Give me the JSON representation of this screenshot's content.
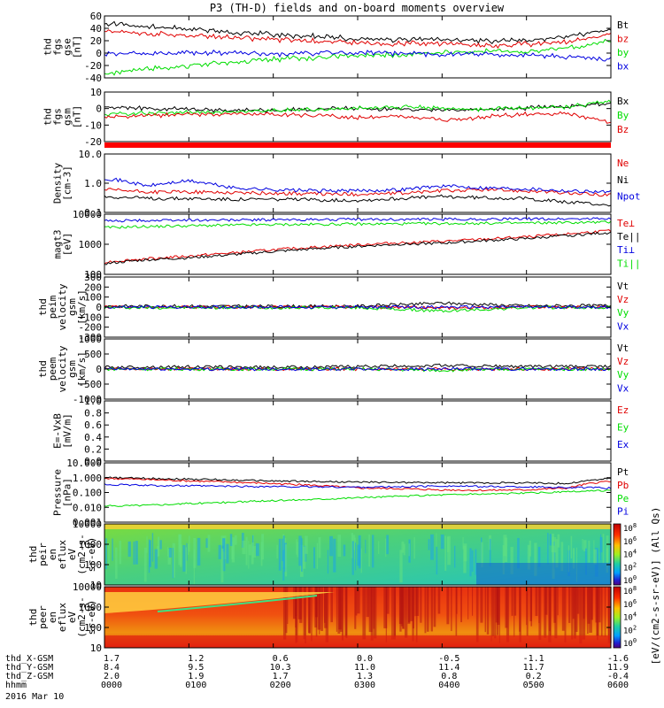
{
  "title": "P3 (TH-D) fields and on-board moments overview",
  "date": "2016 Mar 10",
  "time_axis": {
    "tick_labels": [
      "0000",
      "0100",
      "0200",
      "0300",
      "0400",
      "0500",
      "0600"
    ],
    "rows": [
      {
        "label": "thd_X-GSM",
        "values": [
          "1.7",
          "1.2",
          "0.6",
          "0.0",
          "-0.5",
          "-1.1",
          "-1.6"
        ]
      },
      {
        "label": "thd_Y-GSM",
        "values": [
          "8.4",
          "9.5",
          "10.3",
          "11.0",
          "11.4",
          "11.7",
          "11.9"
        ]
      },
      {
        "label": "thd_Z-GSM",
        "values": [
          "2.0",
          "1.9",
          "1.7",
          "1.3",
          "0.8",
          "0.2",
          "-0.4"
        ]
      },
      {
        "label": "hhmm",
        "values": [
          "0000",
          "0100",
          "0200",
          "0300",
          "0400",
          "0500",
          "0600"
        ]
      }
    ]
  },
  "colors": {
    "black": "#000000",
    "red": "#e00000",
    "green": "#00dd00",
    "blue": "#0000e0"
  },
  "colorbar_unit": "[eV/(cm2-s-sr-eV)] (All Qs)",
  "colorbar_ticks": [
    "10^8",
    "10^6",
    "10^4",
    "10^2",
    "10^0"
  ],
  "chart_data": [
    {
      "type": "line",
      "panel": "fgs_gse",
      "ylabel": [
        "thd",
        "fgs",
        "gse",
        "[nT]"
      ],
      "ylim": [
        -40,
        60
      ],
      "yticks": [
        "60",
        "40",
        "20",
        "0",
        "-20",
        "-40"
      ],
      "legend": [
        {
          "label": "Bt",
          "color": "#000000"
        },
        {
          "label": "bz",
          "color": "#e00000"
        },
        {
          "label": "by",
          "color": "#00dd00"
        },
        {
          "label": "bx",
          "color": "#0000e0"
        }
      ],
      "x_hours": [
        0,
        0.5,
        1,
        1.5,
        2,
        2.5,
        3,
        3.5,
        4,
        4.5,
        5,
        5.5,
        6
      ],
      "series": [
        {
          "name": "Bt",
          "values": [
            47,
            43,
            39,
            34,
            30,
            27,
            23,
            21,
            22,
            20,
            21,
            26,
            40
          ]
        },
        {
          "name": "bz",
          "values": [
            35,
            32,
            29,
            25,
            22,
            19,
            17,
            15,
            16,
            12,
            14,
            18,
            30
          ]
        },
        {
          "name": "by",
          "values": [
            -33,
            -26,
            -20,
            -15,
            -10,
            -7,
            -4,
            -2,
            0,
            3,
            2,
            8,
            20
          ]
        },
        {
          "name": "bx",
          "values": [
            -2,
            -1,
            0,
            0,
            -1,
            0,
            1,
            0,
            -2,
            -3,
            -4,
            -6,
            -10
          ]
        }
      ]
    },
    {
      "type": "line",
      "panel": "fgs_gsm",
      "ylabel": [
        "thd",
        "fgs",
        "gsm",
        "[nT]"
      ],
      "ylim": [
        -25,
        15
      ],
      "yticks": [
        "10",
        "0",
        "-10",
        "-20"
      ],
      "legend": [
        {
          "label": "Bx",
          "color": "#000000"
        },
        {
          "label": "By",
          "color": "#00dd00"
        },
        {
          "label": "Bz",
          "color": "#e00000"
        }
      ],
      "x_hours": [
        0,
        0.5,
        1,
        1.5,
        2,
        2.5,
        3,
        3.5,
        4,
        4.5,
        5,
        5.5,
        6
      ],
      "series": [
        {
          "name": "Bx",
          "values": [
            3,
            2,
            1,
            0,
            0,
            1,
            2,
            1,
            0,
            1,
            2,
            3,
            6
          ]
        },
        {
          "name": "By",
          "values": [
            -3,
            -2,
            -1,
            -1,
            0,
            1,
            2,
            3,
            2,
            1,
            2,
            3,
            8
          ]
        },
        {
          "name": "Bz",
          "values": [
            -5,
            -4,
            -3,
            -3,
            -3,
            -4,
            -6,
            -4,
            -8,
            -5,
            -3,
            -2,
            -10
          ]
        }
      ]
    },
    {
      "type": "line",
      "panel": "density",
      "scale": "log",
      "ylabel": [
        "Density",
        "[cm-3]"
      ],
      "ylim": [
        0.1,
        10
      ],
      "yticks": [
        "10.0",
        "1.0",
        "0.1"
      ],
      "legend": [
        {
          "label": "Ne",
          "color": "#e00000"
        },
        {
          "label": "Ni",
          "color": "#000000"
        },
        {
          "label": "Npot",
          "color": "#0000e0"
        }
      ],
      "x_hours": [
        0,
        0.5,
        1,
        1.5,
        2,
        2.5,
        3,
        3.5,
        4,
        4.5,
        5,
        5.5,
        6
      ],
      "series": [
        {
          "name": "Ne",
          "values": [
            0.6,
            0.5,
            0.5,
            0.48,
            0.45,
            0.43,
            0.42,
            0.45,
            0.55,
            0.6,
            0.55,
            0.45,
            0.4
          ]
        },
        {
          "name": "Ni",
          "values": [
            0.35,
            0.3,
            0.3,
            0.28,
            0.28,
            0.27,
            0.26,
            0.3,
            0.35,
            0.32,
            0.3,
            0.22,
            0.18
          ]
        },
        {
          "name": "Npot",
          "values": [
            1.5,
            0.8,
            1.2,
            0.7,
            0.6,
            0.55,
            0.55,
            0.6,
            0.8,
            0.7,
            0.65,
            0.55,
            0.5
          ]
        }
      ]
    },
    {
      "type": "line",
      "panel": "temperature",
      "scale": "log",
      "ylabel": [
        "magt3",
        "[eV]"
      ],
      "ylim": [
        20,
        10000
      ],
      "yticks": [
        "10000",
        "1000",
        "100"
      ],
      "legend": [
        {
          "label": "Te⊥",
          "color": "#e00000"
        },
        {
          "label": "Te||",
          "color": "#000000"
        },
        {
          "label": "Ti⊥",
          "color": "#0000e0"
        },
        {
          "label": "Ti||",
          "color": "#00dd00"
        }
      ],
      "x_hours": [
        0,
        0.5,
        1,
        1.5,
        2,
        2.5,
        3,
        3.5,
        4,
        4.5,
        5,
        5.5,
        6
      ],
      "series": [
        {
          "name": "Te⊥",
          "values": [
            70,
            100,
            130,
            180,
            250,
            330,
            420,
            520,
            600,
            750,
            950,
            1300,
            1800
          ]
        },
        {
          "name": "Te||",
          "values": [
            60,
            90,
            110,
            150,
            210,
            280,
            360,
            450,
            500,
            650,
            800,
            1100,
            1500
          ]
        },
        {
          "name": "Ti⊥",
          "values": [
            5000,
            5200,
            5400,
            5500,
            5600,
            5700,
            5800,
            5800,
            5900,
            6000,
            6100,
            6200,
            6300
          ]
        },
        {
          "name": "Ti||",
          "values": [
            2500,
            2800,
            3000,
            3200,
            3400,
            3500,
            3600,
            3700,
            3800,
            3900,
            4000,
            4200,
            4400
          ]
        }
      ]
    },
    {
      "type": "line",
      "panel": "peim_velocity",
      "ylabel": [
        "thd",
        "peim",
        "velocity",
        "gsm",
        "[km/s]"
      ],
      "ylim": [
        -300,
        300
      ],
      "yticks": [
        "300",
        "200",
        "100",
        "0",
        "-100",
        "-200",
        "-300"
      ],
      "legend": [
        {
          "label": "Vt",
          "color": "#000000"
        },
        {
          "label": "Vz",
          "color": "#e00000"
        },
        {
          "label": "Vy",
          "color": "#00dd00"
        },
        {
          "label": "Vx",
          "color": "#0000e0"
        }
      ],
      "x_hours": [
        0,
        1,
        2,
        3,
        4,
        5,
        6
      ],
      "series": [
        {
          "name": "Vt",
          "values": [
            10,
            10,
            8,
            10,
            40,
            12,
            15
          ]
        },
        {
          "name": "Vz",
          "values": [
            0,
            0,
            0,
            0,
            -10,
            0,
            0
          ]
        },
        {
          "name": "Vy",
          "values": [
            -5,
            -5,
            -5,
            -5,
            -40,
            -5,
            -5
          ]
        },
        {
          "name": "Vx",
          "values": [
            0,
            0,
            0,
            0,
            0,
            0,
            0
          ]
        }
      ]
    },
    {
      "type": "line",
      "panel": "peem_velocity",
      "ylabel": [
        "thd",
        "peem",
        "velocity",
        "gsm",
        "[km/s]"
      ],
      "ylim": [
        -1000,
        1000
      ],
      "yticks": [
        "1000",
        "500",
        "0",
        "-500",
        "-1000"
      ],
      "legend": [
        {
          "label": "Vt",
          "color": "#000000"
        },
        {
          "label": "Vz",
          "color": "#e00000"
        },
        {
          "label": "Vy",
          "color": "#00dd00"
        },
        {
          "label": "Vx",
          "color": "#0000e0"
        }
      ],
      "x_hours": [
        0,
        1,
        2,
        3,
        4,
        5,
        6
      ],
      "series": [
        {
          "name": "Vt",
          "values": [
            60,
            70,
            60,
            80,
            120,
            80,
            90
          ]
        },
        {
          "name": "Vz",
          "values": [
            0,
            0,
            0,
            0,
            0,
            0,
            0
          ]
        },
        {
          "name": "Vy",
          "values": [
            0,
            0,
            0,
            0,
            -40,
            0,
            0
          ]
        },
        {
          "name": "Vx",
          "values": [
            0,
            0,
            0,
            0,
            0,
            0,
            0
          ]
        }
      ]
    },
    {
      "type": "line",
      "panel": "efield",
      "ylabel": [
        "E=-VxB",
        "[mV/m]"
      ],
      "ylim": [
        0,
        1
      ],
      "yticks": [
        "1.0",
        "0.8",
        "0.6",
        "0.4",
        "0.2",
        "0.0"
      ],
      "legend": [
        {
          "label": "Ez",
          "color": "#e00000"
        },
        {
          "label": "Ey",
          "color": "#00dd00"
        },
        {
          "label": "Ex",
          "color": "#0000e0"
        }
      ],
      "series": []
    },
    {
      "type": "line",
      "panel": "pressure",
      "scale": "log",
      "ylabel": [
        "Pressure",
        "[nPa]"
      ],
      "ylim": [
        0.001,
        10
      ],
      "yticks": [
        "10.000",
        "1.000",
        "0.100",
        "0.010",
        "0.001"
      ],
      "legend": [
        {
          "label": "Pt",
          "color": "#000000"
        },
        {
          "label": "Pb",
          "color": "#e00000"
        },
        {
          "label": "Pe",
          "color": "#00dd00"
        },
        {
          "label": "Pi",
          "color": "#0000e0"
        }
      ],
      "x_hours": [
        0,
        0.5,
        1,
        1.5,
        2,
        2.5,
        3,
        3.5,
        4,
        4.5,
        5,
        5.5,
        6
      ],
      "series": [
        {
          "name": "Pt",
          "values": [
            1.0,
            0.9,
            0.8,
            0.7,
            0.6,
            0.55,
            0.5,
            0.48,
            0.45,
            0.45,
            0.45,
            0.4,
            0.9
          ]
        },
        {
          "name": "Pb",
          "values": [
            0.9,
            0.75,
            0.6,
            0.5,
            0.4,
            0.3,
            0.2,
            0.18,
            0.15,
            0.14,
            0.15,
            0.2,
            0.6
          ]
        },
        {
          "name": "Pe",
          "values": [
            0.012,
            0.014,
            0.018,
            0.022,
            0.028,
            0.035,
            0.045,
            0.055,
            0.07,
            0.08,
            0.09,
            0.11,
            0.14
          ]
        },
        {
          "name": "Pi",
          "values": [
            0.35,
            0.3,
            0.28,
            0.26,
            0.25,
            0.24,
            0.23,
            0.24,
            0.28,
            0.25,
            0.24,
            0.22,
            0.2
          ]
        }
      ]
    },
    {
      "type": "heatmap",
      "panel": "peir_spectrogram",
      "scale": "log",
      "ylabel": [
        "thd",
        "peir",
        "en",
        "eflux",
        "eV",
        "(cm2-s-",
        "sr-eV)"
      ],
      "ylim": [
        10,
        30000
      ],
      "yticks": [
        "10000",
        "1000",
        "100",
        "10"
      ],
      "colorbar": {
        "ticks": [
          "10^8",
          "10^6",
          "10^4",
          "10^2",
          "10^0"
        ]
      }
    },
    {
      "type": "heatmap",
      "panel": "peer_spectrogram",
      "scale": "log",
      "ylabel": [
        "thd",
        "peer",
        "en",
        "eflux",
        "eV",
        "(cm2-s-",
        "sr-eV)"
      ],
      "ylim": [
        5,
        30000
      ],
      "yticks": [
        "10000",
        "1000",
        "100",
        "10"
      ],
      "colorbar": {
        "ticks": [
          "10^8",
          "10^6",
          "10^4",
          "10^2",
          "10^0"
        ]
      }
    }
  ]
}
